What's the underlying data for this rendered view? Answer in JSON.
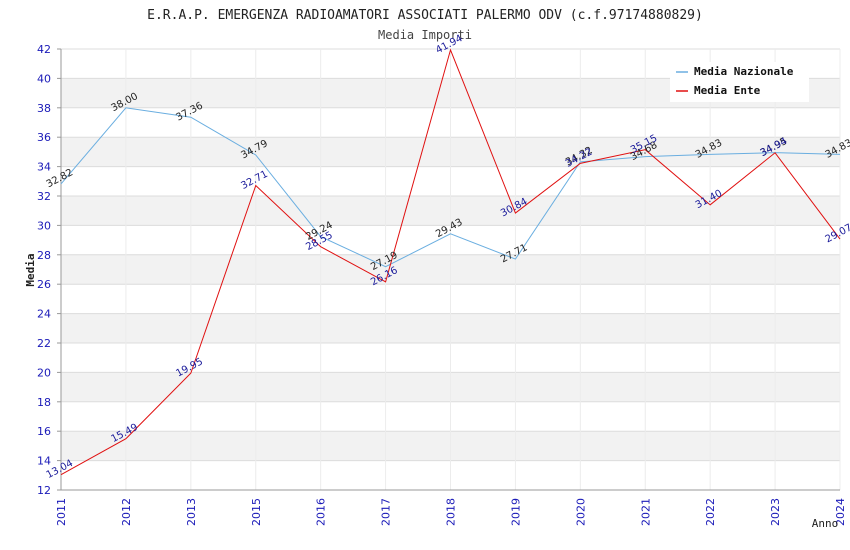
{
  "chart_data": {
    "type": "line",
    "title": "E.R.A.P. EMERGENZA RADIOAMATORI ASSOCIATI PALERMO ODV (c.f.97174880829)",
    "subtitle": "Media Importi",
    "ylabel": "Media",
    "xlabel": "Anno",
    "ylim": [
      12,
      42
    ],
    "yticks": [
      12,
      14,
      16,
      18,
      20,
      22,
      24,
      26,
      28,
      30,
      32,
      34,
      36,
      38,
      40,
      42
    ],
    "categories": [
      "2011",
      "2012",
      "2013",
      "2015",
      "2016",
      "2017",
      "2018",
      "2019",
      "2020",
      "2021",
      "2022",
      "2023",
      "2024"
    ],
    "grid": "horizontal alternating bands",
    "legend_position": "top-right",
    "series": [
      {
        "name": "Media Nazionale",
        "color": "#6aaee0",
        "values": [
          32.82,
          38.0,
          37.36,
          34.79,
          29.24,
          27.19,
          29.43,
          27.71,
          34.32,
          34.68,
          34.83,
          34.95,
          34.83
        ],
        "labels": [
          "32.82",
          "38.00",
          "37.36",
          "34.79",
          "29.24",
          "27.19",
          "29.43",
          "27.71",
          "34.32",
          "34.68",
          "34.83",
          "34.95",
          "34.83"
        ]
      },
      {
        "name": "Media Ente",
        "color": "#e01010",
        "values": [
          13.04,
          15.49,
          19.95,
          32.71,
          28.55,
          26.16,
          41.94,
          30.84,
          34.22,
          35.15,
          31.4,
          34.94,
          29.07
        ],
        "labels": [
          "13.04",
          "15.49",
          "19.95",
          "32.71",
          "28.55",
          "26.16",
          "41.94",
          "30.84",
          "34.22",
          "35.15",
          "31.40",
          "34.94",
          "29.07"
        ]
      }
    ]
  }
}
